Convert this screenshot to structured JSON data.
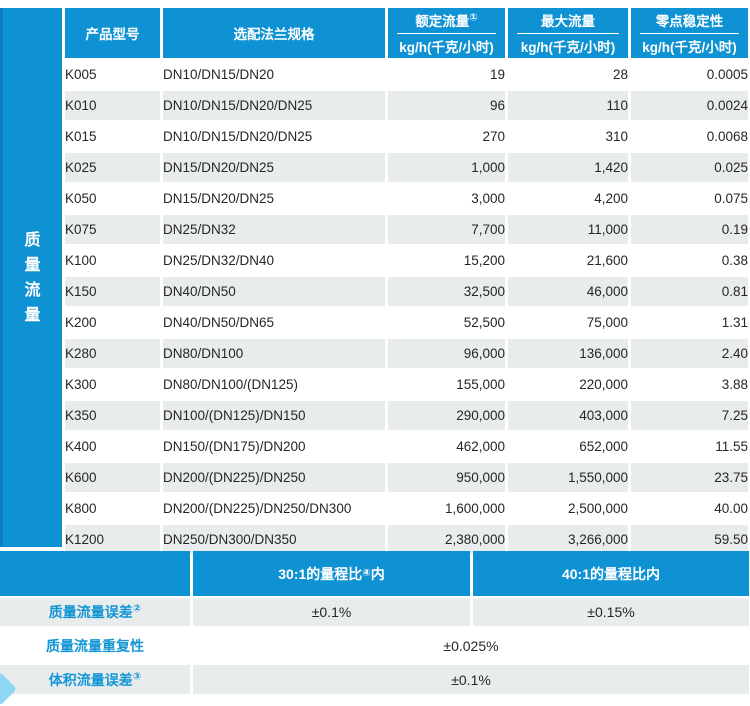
{
  "side_label": "质量流量",
  "table": {
    "columns": [
      {
        "label": "产品型号",
        "sup": "",
        "unit": ""
      },
      {
        "label": "选配法兰规格",
        "sup": "",
        "unit": ""
      },
      {
        "label": "额定流量",
        "sup": "①",
        "unit": "kg/h(千克/小时)"
      },
      {
        "label": "最大流量",
        "sup": "",
        "unit": "kg/h(千克/小时)"
      },
      {
        "label": "零点稳定性",
        "sup": "",
        "unit": "kg/h(千克/小时)"
      }
    ],
    "rows": [
      {
        "model": "K005",
        "flange": "DN10/DN15/DN20",
        "rated": "19",
        "max": "28",
        "zero": "0.0005"
      },
      {
        "model": "K010",
        "flange": "DN10/DN15/DN20/DN25",
        "rated": "96",
        "max": "110",
        "zero": "0.0024"
      },
      {
        "model": "K015",
        "flange": "DN10/DN15/DN20/DN25",
        "rated": "270",
        "max": "310",
        "zero": "0.0068"
      },
      {
        "model": "K025",
        "flange": "DN15/DN20/DN25",
        "rated": "1,000",
        "max": "1,420",
        "zero": "0.025"
      },
      {
        "model": "K050",
        "flange": "DN15/DN20/DN25",
        "rated": "3,000",
        "max": "4,200",
        "zero": "0.075"
      },
      {
        "model": "K075",
        "flange": "DN25/DN32",
        "rated": "7,700",
        "max": "11,000",
        "zero": "0.19"
      },
      {
        "model": "K100",
        "flange": "DN25/DN32/DN40",
        "rated": "15,200",
        "max": "21,600",
        "zero": "0.38"
      },
      {
        "model": "K150",
        "flange": "DN40/DN50",
        "rated": "32,500",
        "max": "46,000",
        "zero": "0.81"
      },
      {
        "model": "K200",
        "flange": "DN40/DN50/DN65",
        "rated": "52,500",
        "max": "75,000",
        "zero": "1.31"
      },
      {
        "model": "K280",
        "flange": "DN80/DN100",
        "rated": "96,000",
        "max": "136,000",
        "zero": "2.40"
      },
      {
        "model": "K300",
        "flange": "DN80/DN100/(DN125)",
        "rated": "155,000",
        "max": "220,000",
        "zero": "3.88"
      },
      {
        "model": "K350",
        "flange": "DN100/(DN125)/DN150",
        "rated": "290,000",
        "max": "403,000",
        "zero": "7.25"
      },
      {
        "model": "K400",
        "flange": "DN150/(DN175)/DN200",
        "rated": "462,000",
        "max": "652,000",
        "zero": "11.55"
      },
      {
        "model": "K600",
        "flange": "DN200/(DN225)/DN250",
        "rated": "950,000",
        "max": "1,550,000",
        "zero": "23.75"
      },
      {
        "model": "K800",
        "flange": "DN200/(DN225)/DN250/DN300",
        "rated": "1,600,000",
        "max": "2,500,000",
        "zero": "40.00"
      },
      {
        "model": "K1200",
        "flange": "DN250/DN300/DN350",
        "rated": "2,380,000",
        "max": "3,266,000",
        "zero": "59.50"
      }
    ]
  },
  "spec": {
    "band": {
      "range30_pre": "30:1的量程比",
      "range30_sup": "④",
      "range30_post": "内",
      "range40": "40:1的量程比内"
    },
    "rows": {
      "error": {
        "label": "质量流量误差",
        "sup": "②",
        "value30": "±0.1%",
        "value40": "±0.15%"
      },
      "repeat": {
        "label": "质量流量重复性",
        "sup": "",
        "value": "±0.025%"
      },
      "volume": {
        "label": "体积流量误差",
        "sup": "③",
        "value": "±0.1%"
      }
    }
  },
  "colors": {
    "accent_blue": "#0f92d4",
    "row_gray": "#e9eced",
    "label_blue": "#1496d6",
    "deco_blue": "#8ed7f3"
  }
}
